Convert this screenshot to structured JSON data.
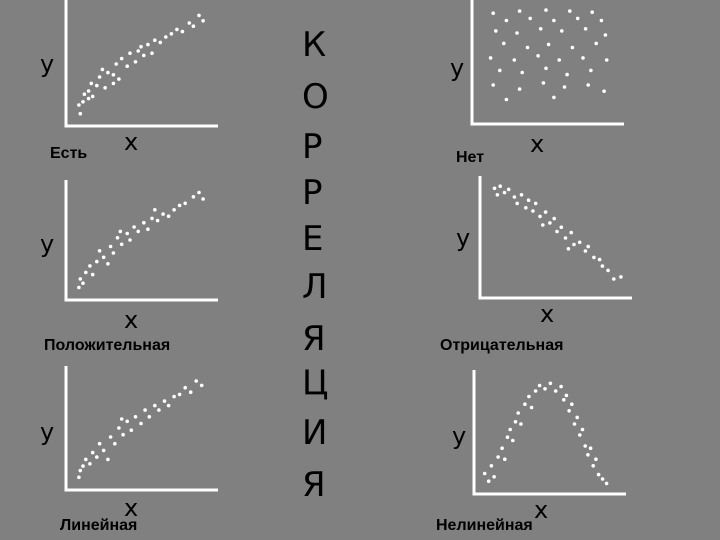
{
  "title_letters": [
    "К",
    "О",
    "Р",
    "Р",
    "Е",
    "Л",
    "Я",
    "Ц",
    "И",
    "Я"
  ],
  "panels": [
    {
      "id": "est",
      "caption": "Есть",
      "xlabel": "x",
      "ylabel": "y",
      "pattern": "positive-linear",
      "points": [
        [
          0.05,
          0.12
        ],
        [
          0.06,
          0.04
        ],
        [
          0.08,
          0.15
        ],
        [
          0.09,
          0.22
        ],
        [
          0.12,
          0.25
        ],
        [
          0.14,
          0.32
        ],
        [
          0.15,
          0.2
        ],
        [
          0.18,
          0.3
        ],
        [
          0.2,
          0.38
        ],
        [
          0.22,
          0.45
        ],
        [
          0.24,
          0.28
        ],
        [
          0.26,
          0.42
        ],
        [
          0.3,
          0.4
        ],
        [
          0.32,
          0.5
        ],
        [
          0.34,
          0.36
        ],
        [
          0.36,
          0.55
        ],
        [
          0.4,
          0.48
        ],
        [
          0.42,
          0.6
        ],
        [
          0.46,
          0.52
        ],
        [
          0.48,
          0.62
        ],
        [
          0.52,
          0.58
        ],
        [
          0.55,
          0.68
        ],
        [
          0.58,
          0.6
        ],
        [
          0.6,
          0.72
        ],
        [
          0.64,
          0.7
        ],
        [
          0.68,
          0.75
        ],
        [
          0.72,
          0.78
        ],
        [
          0.76,
          0.82
        ],
        [
          0.8,
          0.8
        ],
        [
          0.85,
          0.88
        ],
        [
          0.88,
          0.85
        ],
        [
          0.92,
          0.95
        ],
        [
          0.95,
          0.9
        ],
        [
          0.12,
          0.18
        ],
        [
          0.3,
          0.32
        ],
        [
          0.5,
          0.66
        ]
      ]
    },
    {
      "id": "net",
      "caption": "Нет",
      "xlabel": "x",
      "ylabel": "y",
      "pattern": "no-correlation",
      "points": [
        [
          0.1,
          0.95
        ],
        [
          0.3,
          0.97
        ],
        [
          0.5,
          0.98
        ],
        [
          0.68,
          0.97
        ],
        [
          0.85,
          0.96
        ],
        [
          0.2,
          0.88
        ],
        [
          0.38,
          0.9
        ],
        [
          0.56,
          0.88
        ],
        [
          0.74,
          0.9
        ],
        [
          0.92,
          0.88
        ],
        [
          0.12,
          0.78
        ],
        [
          0.28,
          0.76
        ],
        [
          0.46,
          0.8
        ],
        [
          0.62,
          0.78
        ],
        [
          0.8,
          0.8
        ],
        [
          0.95,
          0.74
        ],
        [
          0.18,
          0.66
        ],
        [
          0.36,
          0.62
        ],
        [
          0.52,
          0.65
        ],
        [
          0.7,
          0.62
        ],
        [
          0.88,
          0.66
        ],
        [
          0.08,
          0.52
        ],
        [
          0.26,
          0.5
        ],
        [
          0.44,
          0.54
        ],
        [
          0.6,
          0.5
        ],
        [
          0.78,
          0.52
        ],
        [
          0.96,
          0.5
        ],
        [
          0.15,
          0.4
        ],
        [
          0.32,
          0.38
        ],
        [
          0.5,
          0.42
        ],
        [
          0.66,
          0.36
        ],
        [
          0.84,
          0.4
        ],
        [
          0.1,
          0.26
        ],
        [
          0.3,
          0.22
        ],
        [
          0.48,
          0.28
        ],
        [
          0.64,
          0.24
        ],
        [
          0.82,
          0.26
        ],
        [
          0.94,
          0.2
        ],
        [
          0.2,
          0.12
        ],
        [
          0.56,
          0.14
        ]
      ]
    },
    {
      "id": "positive",
      "caption": "Положительная",
      "xlabel": "x",
      "ylabel": "y",
      "pattern": "positive-linear",
      "points": [
        [
          0.05,
          0.06
        ],
        [
          0.06,
          0.14
        ],
        [
          0.08,
          0.1
        ],
        [
          0.1,
          0.2
        ],
        [
          0.13,
          0.26
        ],
        [
          0.15,
          0.18
        ],
        [
          0.18,
          0.3
        ],
        [
          0.2,
          0.4
        ],
        [
          0.23,
          0.34
        ],
        [
          0.26,
          0.28
        ],
        [
          0.28,
          0.44
        ],
        [
          0.3,
          0.38
        ],
        [
          0.33,
          0.52
        ],
        [
          0.36,
          0.46
        ],
        [
          0.4,
          0.56
        ],
        [
          0.42,
          0.5
        ],
        [
          0.45,
          0.62
        ],
        [
          0.48,
          0.58
        ],
        [
          0.52,
          0.66
        ],
        [
          0.55,
          0.6
        ],
        [
          0.58,
          0.7
        ],
        [
          0.62,
          0.68
        ],
        [
          0.66,
          0.74
        ],
        [
          0.7,
          0.72
        ],
        [
          0.74,
          0.78
        ],
        [
          0.78,
          0.82
        ],
        [
          0.82,
          0.84
        ],
        [
          0.88,
          0.9
        ],
        [
          0.92,
          0.94
        ],
        [
          0.95,
          0.88
        ],
        [
          0.35,
          0.58
        ],
        [
          0.6,
          0.78
        ]
      ]
    },
    {
      "id": "negative",
      "caption": "Отрицательная",
      "xlabel": "x",
      "ylabel": "y",
      "pattern": "negative-linear",
      "points": [
        [
          0.06,
          0.96
        ],
        [
          0.08,
          0.9
        ],
        [
          0.1,
          0.98
        ],
        [
          0.13,
          0.92
        ],
        [
          0.16,
          0.95
        ],
        [
          0.2,
          0.88
        ],
        [
          0.22,
          0.82
        ],
        [
          0.25,
          0.9
        ],
        [
          0.28,
          0.78
        ],
        [
          0.3,
          0.85
        ],
        [
          0.33,
          0.75
        ],
        [
          0.35,
          0.82
        ],
        [
          0.38,
          0.7
        ],
        [
          0.42,
          0.74
        ],
        [
          0.45,
          0.64
        ],
        [
          0.48,
          0.68
        ],
        [
          0.5,
          0.56
        ],
        [
          0.53,
          0.6
        ],
        [
          0.56,
          0.5
        ],
        [
          0.6,
          0.55
        ],
        [
          0.62,
          0.44
        ],
        [
          0.66,
          0.46
        ],
        [
          0.7,
          0.38
        ],
        [
          0.72,
          0.42
        ],
        [
          0.76,
          0.32
        ],
        [
          0.8,
          0.3
        ],
        [
          0.82,
          0.24
        ],
        [
          0.86,
          0.2
        ],
        [
          0.9,
          0.12
        ],
        [
          0.95,
          0.14
        ],
        [
          0.4,
          0.62
        ],
        [
          0.58,
          0.4
        ]
      ]
    },
    {
      "id": "linear",
      "caption": "Линейная",
      "xlabel": "x",
      "ylabel": "y",
      "pattern": "positive-linear",
      "points": [
        [
          0.05,
          0.06
        ],
        [
          0.06,
          0.12
        ],
        [
          0.08,
          0.16
        ],
        [
          0.1,
          0.22
        ],
        [
          0.13,
          0.18
        ],
        [
          0.15,
          0.28
        ],
        [
          0.18,
          0.24
        ],
        [
          0.2,
          0.36
        ],
        [
          0.23,
          0.3
        ],
        [
          0.26,
          0.22
        ],
        [
          0.28,
          0.42
        ],
        [
          0.31,
          0.36
        ],
        [
          0.34,
          0.5
        ],
        [
          0.37,
          0.44
        ],
        [
          0.4,
          0.56
        ],
        [
          0.43,
          0.48
        ],
        [
          0.46,
          0.6
        ],
        [
          0.5,
          0.54
        ],
        [
          0.53,
          0.66
        ],
        [
          0.56,
          0.6
        ],
        [
          0.6,
          0.7
        ],
        [
          0.63,
          0.66
        ],
        [
          0.67,
          0.74
        ],
        [
          0.7,
          0.7
        ],
        [
          0.74,
          0.78
        ],
        [
          0.78,
          0.8
        ],
        [
          0.82,
          0.86
        ],
        [
          0.86,
          0.82
        ],
        [
          0.9,
          0.92
        ],
        [
          0.94,
          0.88
        ],
        [
          0.36,
          0.58
        ]
      ]
    },
    {
      "id": "nonlinear",
      "caption": "Нелинейная",
      "xlabel": "x",
      "ylabel": "y",
      "pattern": "nonlinear-arch",
      "points": [
        [
          0.05,
          0.15
        ],
        [
          0.08,
          0.08
        ],
        [
          0.1,
          0.22
        ],
        [
          0.12,
          0.12
        ],
        [
          0.15,
          0.3
        ],
        [
          0.18,
          0.38
        ],
        [
          0.2,
          0.28
        ],
        [
          0.22,
          0.48
        ],
        [
          0.24,
          0.55
        ],
        [
          0.26,
          0.45
        ],
        [
          0.28,
          0.62
        ],
        [
          0.3,
          0.7
        ],
        [
          0.32,
          0.6
        ],
        [
          0.35,
          0.78
        ],
        [
          0.38,
          0.85
        ],
        [
          0.4,
          0.75
        ],
        [
          0.43,
          0.9
        ],
        [
          0.46,
          0.95
        ],
        [
          0.5,
          0.92
        ],
        [
          0.54,
          0.97
        ],
        [
          0.58,
          0.9
        ],
        [
          0.62,
          0.94
        ],
        [
          0.64,
          0.82
        ],
        [
          0.66,
          0.86
        ],
        [
          0.68,
          0.72
        ],
        [
          0.7,
          0.78
        ],
        [
          0.72,
          0.6
        ],
        [
          0.74,
          0.66
        ],
        [
          0.76,
          0.5
        ],
        [
          0.78,
          0.55
        ],
        [
          0.8,
          0.4
        ],
        [
          0.82,
          0.32
        ],
        [
          0.84,
          0.38
        ],
        [
          0.86,
          0.22
        ],
        [
          0.88,
          0.28
        ],
        [
          0.9,
          0.14
        ],
        [
          0.93,
          0.1
        ],
        [
          0.96,
          0.06
        ]
      ]
    }
  ]
}
